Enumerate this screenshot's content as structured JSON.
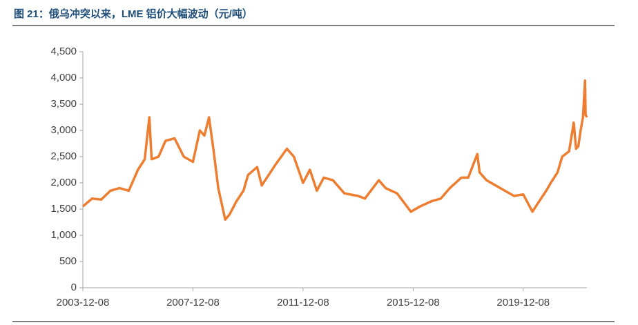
{
  "chart_data": {
    "type": "line",
    "title": "图 21：俄乌冲突以来，LME 铝价大幅波动（元/吨）",
    "x": [
      "2003-12-08",
      "2004-04-08",
      "2004-08-08",
      "2004-12-08",
      "2005-04-08",
      "2005-08-08",
      "2005-12-08",
      "2006-03-08",
      "2006-05-08",
      "2006-06-08",
      "2006-09-08",
      "2006-12-08",
      "2007-04-08",
      "2007-08-08",
      "2007-12-08",
      "2008-03-08",
      "2008-05-08",
      "2008-07-08",
      "2008-09-08",
      "2008-11-08",
      "2009-02-08",
      "2009-04-08",
      "2009-07-08",
      "2009-10-08",
      "2009-12-08",
      "2010-04-08",
      "2010-06-08",
      "2010-09-08",
      "2010-12-08",
      "2011-05-08",
      "2011-08-08",
      "2011-12-08",
      "2012-03-08",
      "2012-06-08",
      "2012-09-08",
      "2013-01-08",
      "2013-06-08",
      "2013-12-08",
      "2014-03-08",
      "2014-09-08",
      "2014-12-08",
      "2015-05-08",
      "2015-11-08",
      "2016-03-08",
      "2016-08-08",
      "2016-12-08",
      "2017-04-08",
      "2017-09-08",
      "2017-12-08",
      "2018-04-08",
      "2018-05-08",
      "2018-08-08",
      "2018-12-08",
      "2019-04-08",
      "2019-08-08",
      "2019-12-08",
      "2020-04-08",
      "2020-07-08",
      "2020-10-08",
      "2020-12-08",
      "2021-03-08",
      "2021-05-08",
      "2021-08-08",
      "2021-10-08",
      "2021-11-08",
      "2021-12-08",
      "2022-01-08",
      "2022-02-08",
      "2022-03-07",
      "2022-03-15",
      "2022-04-01"
    ],
    "series": [
      {
        "name": "LME铝价",
        "color": "#ed7d31",
        "values": [
          1550,
          1700,
          1680,
          1850,
          1900,
          1850,
          2250,
          2450,
          3250,
          2450,
          2500,
          2800,
          2850,
          2500,
          2400,
          3000,
          2900,
          3250,
          2600,
          1900,
          1300,
          1400,
          1650,
          1850,
          2150,
          2300,
          1950,
          2150,
          2350,
          2650,
          2500,
          2000,
          2250,
          1850,
          2100,
          2050,
          1800,
          1750,
          1700,
          2050,
          1900,
          1800,
          1450,
          1550,
          1650,
          1700,
          1900,
          2100,
          2100,
          2550,
          2200,
          2050,
          1950,
          1850,
          1750,
          1780,
          1450,
          1650,
          1850,
          2000,
          2200,
          2500,
          2600,
          3150,
          2650,
          2700,
          3000,
          3250,
          3950,
          3300,
          3250
        ]
      }
    ],
    "xlim": [
      "2003-12-08",
      "2022-04-01"
    ],
    "xticks": [
      "2003-12-08",
      "2007-12-08",
      "2011-12-08",
      "2015-12-08",
      "2019-12-08"
    ],
    "ylim": [
      0,
      4500
    ],
    "yticks": [
      0,
      500,
      {
        "value": 1000,
        "label": "1,000"
      },
      {
        "value": 1500,
        "label": "1,500"
      },
      {
        "value": 2000,
        "label": "2,000"
      },
      {
        "value": 2500,
        "label": "2,500"
      },
      {
        "value": 3000,
        "label": "3,000"
      },
      {
        "value": 3500,
        "label": "3,500"
      },
      {
        "value": 4000,
        "label": "4,000"
      },
      {
        "value": 4500,
        "label": "4,500"
      }
    ]
  }
}
